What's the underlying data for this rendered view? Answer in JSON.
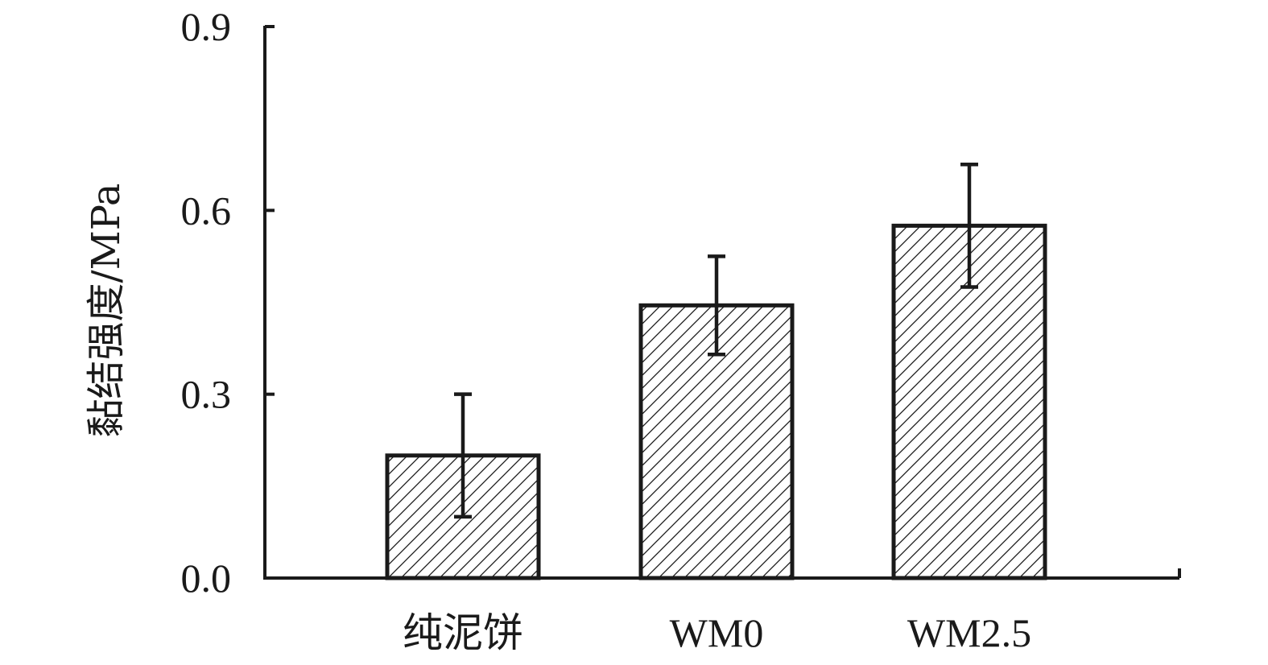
{
  "chart_data": {
    "type": "bar",
    "title": "",
    "xlabel": "",
    "ylabel": "黏结强度/MPa",
    "categories": [
      "纯泥饼",
      "WM0",
      "WM2.5"
    ],
    "values": [
      0.2,
      0.445,
      0.575
    ],
    "error_low": [
      0.1,
      0.365,
      0.475
    ],
    "error_high": [
      0.3,
      0.525,
      0.675
    ],
    "ylim": [
      0,
      0.9
    ],
    "yticks": [
      "0.0",
      "0.3",
      "0.6",
      "0.9"
    ],
    "bar_pattern": "diagonal-hatch",
    "grid": false,
    "legend": "none",
    "colors": {
      "bar_fill": "#ffffff",
      "bar_edge": "#1a1a1a",
      "hatch": "#1a1a1a"
    }
  }
}
